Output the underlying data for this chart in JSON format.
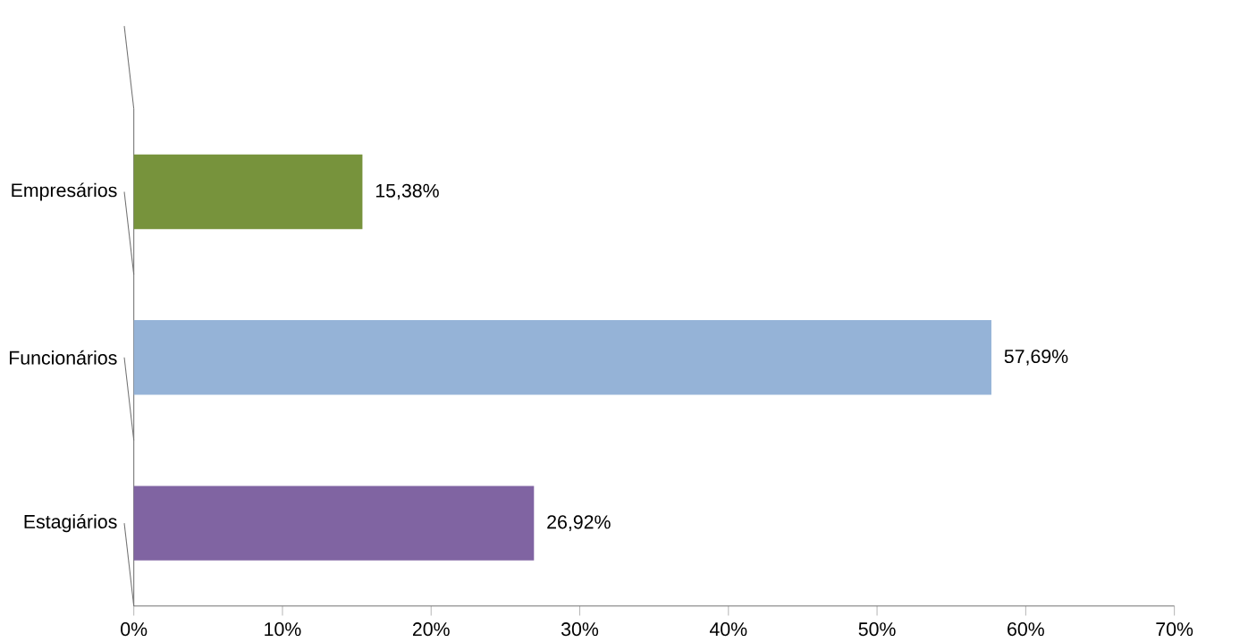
{
  "chart_data": {
    "type": "bar",
    "orientation": "horizontal",
    "categories": [
      "Empresários",
      "Funcionários",
      "Estagiários"
    ],
    "values": [
      15.38,
      57.69,
      26.92
    ],
    "colors": [
      "#77933c",
      "#95b3d7",
      "#8064a2"
    ],
    "value_labels": [
      "15,38%",
      "57,69%",
      "26,92%"
    ],
    "xlim": [
      0,
      70
    ],
    "xticks": [
      {
        "value": 0,
        "label": "0%"
      },
      {
        "value": 10,
        "label": "10%"
      },
      {
        "value": 20,
        "label": "20%"
      },
      {
        "value": 30,
        "label": "30%"
      },
      {
        "value": 40,
        "label": "40%"
      },
      {
        "value": 50,
        "label": "50%"
      },
      {
        "value": 60,
        "label": "60%"
      },
      {
        "value": 70,
        "label": "70%"
      }
    ]
  }
}
